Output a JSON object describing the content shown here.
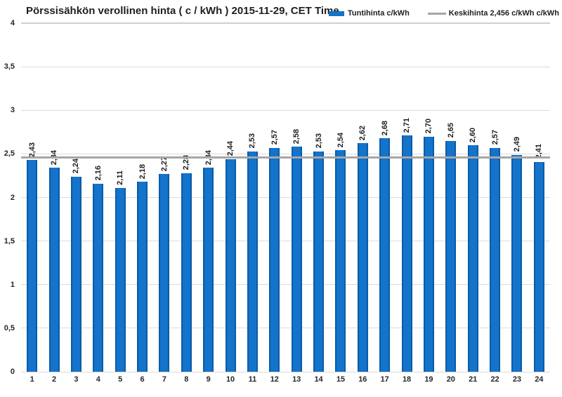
{
  "chart_data": {
    "type": "bar",
    "title": "Pörssisähkön verollinen hinta ( c / kWh ) 2015-11-29, CET Time",
    "categories": [
      "1",
      "2",
      "3",
      "4",
      "5",
      "6",
      "7",
      "8",
      "9",
      "10",
      "11",
      "12",
      "13",
      "14",
      "15",
      "16",
      "17",
      "18",
      "19",
      "20",
      "21",
      "22",
      "23",
      "24"
    ],
    "series": [
      {
        "name": "Tuntihinta c/kWh",
        "type": "bar",
        "color": "#1473CA",
        "values": [
          2.43,
          2.34,
          2.24,
          2.16,
          2.11,
          2.18,
          2.27,
          2.28,
          2.34,
          2.44,
          2.53,
          2.57,
          2.58,
          2.53,
          2.54,
          2.62,
          2.68,
          2.71,
          2.7,
          2.65,
          2.6,
          2.57,
          2.49,
          2.41
        ],
        "labels": [
          "2,43",
          "2,34",
          "2,24",
          "2,16",
          "2,11",
          "2,18",
          "2,27",
          "2,28",
          "2,34",
          "2,44",
          "2,53",
          "2,57",
          "2,58",
          "2,53",
          "2,54",
          "2,62",
          "2,68",
          "2,71",
          "2,70",
          "2,65",
          "2,60",
          "2,57",
          "2,49",
          "2,41"
        ]
      },
      {
        "name": "Keskihinta 2,456 c/kWh c/kWh",
        "type": "line",
        "color": "#A6A6A6",
        "value": 2.456
      }
    ],
    "ylim": [
      0,
      4
    ],
    "y_tick_step": 0.5,
    "y_tick_labels": [
      "0",
      "0,5",
      "1",
      "1,5",
      "2",
      "2,5",
      "3",
      "3,5",
      "4"
    ],
    "grid": true,
    "legend_position": "top-right",
    "xlabel": "",
    "ylabel": ""
  }
}
